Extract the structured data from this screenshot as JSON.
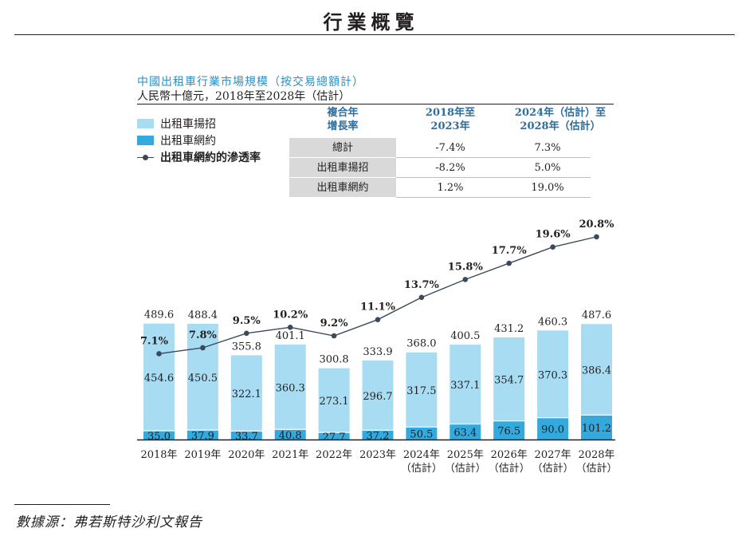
{
  "page": {
    "title": "行業概覽",
    "source": "數據源：弗若斯特沙利文報告"
  },
  "legend": {
    "hail": "出租車揚招",
    "online": "出租車網約",
    "penetration": "出租車網約的滲透率"
  },
  "cagr_table": {
    "header": [
      "複合年\n增長率",
      "2018年至\n2023年",
      "2024年（估計）至\n2028年（估計）"
    ],
    "rows": [
      {
        "label": "總計",
        "v1": "-7.4%",
        "v2": "7.3%"
      },
      {
        "label": "出租車揚招",
        "v1": "-8.2%",
        "v2": "5.0%"
      },
      {
        "label": "出租車網約",
        "v1": "1.2%",
        "v2": "19.0%"
      }
    ]
  },
  "colors": {
    "hail": "#a8dcf2",
    "online": "#33a9dd",
    "line": "#3a4a5c",
    "accent": "#2d8fc4"
  },
  "chart_data": {
    "type": "bar",
    "title": "中國出租車行業市場規模（按交易總額計）",
    "subtitle": "人民幣十億元，2018年至2028年（估計）",
    "categories": [
      "2018年",
      "2019年",
      "2020年",
      "2021年",
      "2022年",
      "2023年",
      "2024年",
      "2025年",
      "2026年",
      "2027年",
      "2028年"
    ],
    "category_notes": [
      "",
      "",
      "",
      "",
      "",
      "",
      "（估計）",
      "（估計）",
      "（估計）",
      "（估計）",
      "（估計）"
    ],
    "series": [
      {
        "name": "出租車網約",
        "values": [
          35.0,
          37.9,
          33.7,
          40.8,
          27.7,
          37.2,
          50.5,
          63.4,
          76.5,
          90.0,
          101.2
        ]
      },
      {
        "name": "出租車揚招",
        "values": [
          454.6,
          450.5,
          322.1,
          360.3,
          273.1,
          296.7,
          317.5,
          337.1,
          354.7,
          370.3,
          386.4
        ]
      }
    ],
    "totals": [
      489.6,
      488.4,
      355.8,
      401.1,
      300.8,
      333.9,
      368.0,
      400.5,
      431.2,
      460.3,
      487.6
    ],
    "value_labels": {
      "online": [
        "35.0",
        "37.9",
        "33.7",
        "40.8",
        "27.7",
        "37.2",
        "50.5",
        "63.4",
        "76.5",
        "90.0",
        "101.2"
      ],
      "hail": [
        "454.6",
        "450.5",
        "322.1",
        "360.3",
        "273.1",
        "296.7",
        "317.5",
        "337.1",
        "354.7",
        "370.3",
        "386.4"
      ],
      "totals": [
        "489.6",
        "488.4",
        "355.8",
        "401.1",
        "300.8",
        "333.9",
        "368.0",
        "400.5",
        "431.2",
        "460.3",
        "487.6"
      ]
    },
    "line": {
      "name": "出租車網約的滲透率",
      "values": [
        7.1,
        7.8,
        9.5,
        10.2,
        9.2,
        11.1,
        13.7,
        15.8,
        17.7,
        19.6,
        20.8
      ],
      "labels": [
        "7.1%",
        "7.8%",
        "9.5%",
        "10.2%",
        "9.2%",
        "11.1%",
        "13.7%",
        "15.8%",
        "17.7%",
        "19.6%",
        "20.8%"
      ]
    },
    "ylim": [
      0,
      500
    ]
  }
}
